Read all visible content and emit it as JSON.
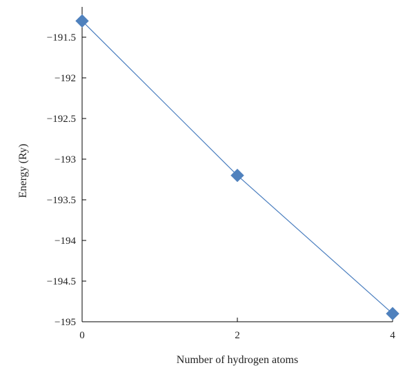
{
  "chart_data": {
    "type": "line",
    "title": "",
    "xlabel": "Number of hydrogen atoms",
    "ylabel": "Energy (Ry)",
    "xlim": [
      0,
      4
    ],
    "ylim": [
      -195,
      -191.3
    ],
    "xticks": [
      0,
      2,
      4
    ],
    "xtick_labels": [
      "0",
      "2",
      "4"
    ],
    "yticks": [
      -191.5,
      -192,
      -192.5,
      -193,
      -193.5,
      -194,
      -194.5,
      -195
    ],
    "ytick_labels": [
      "−191.5",
      "−192",
      "−192.5",
      "−193",
      "−193.5",
      "−194",
      "−194.5",
      "−195"
    ],
    "grid": false,
    "legend": "none",
    "marker": "diamond",
    "series": [
      {
        "x": [
          0,
          2,
          4
        ],
        "y": [
          -191.3,
          -193.2,
          -194.9
        ],
        "color": "#4f81bd",
        "line_color": "#4a7ebf"
      }
    ]
  }
}
